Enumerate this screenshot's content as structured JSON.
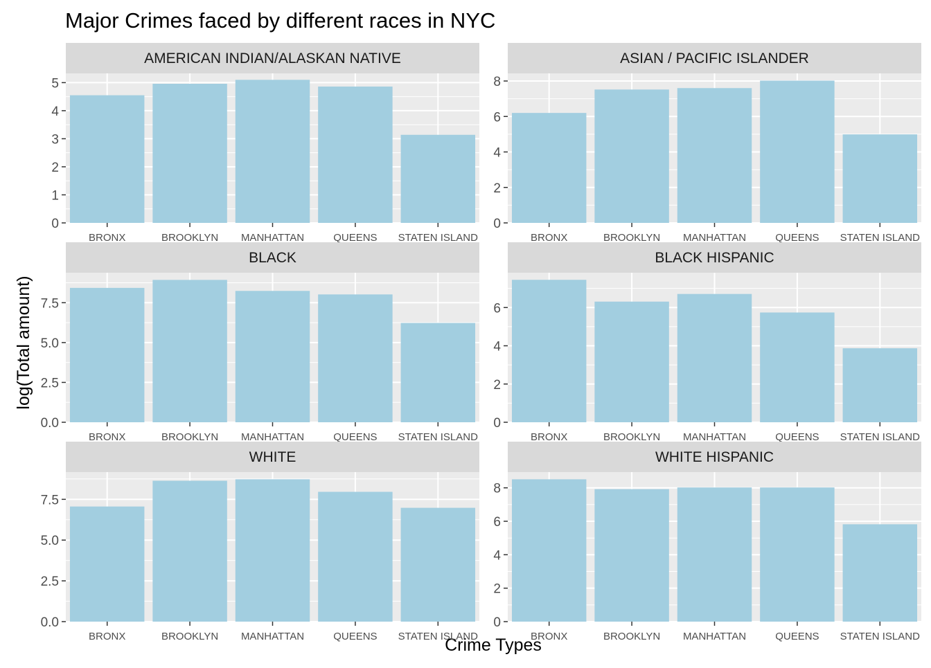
{
  "chart_data": {
    "type": "bar",
    "title": "Major Crimes faced by different races in NYC",
    "xlabel": "Crime Types",
    "ylabel": "log(Total amount)",
    "categories": [
      "BRONX",
      "BROOKLYN",
      "MANHATTAN",
      "QUEENS",
      "STATEN ISLAND"
    ],
    "bar_color": "#A2CEE0",
    "panel_background": "#EBEBEB",
    "strip_background": "#D9D9D9",
    "grid": true,
    "facets": [
      {
        "name": "AMERICAN INDIAN/ALASKAN NATIVE",
        "values": [
          4.55,
          4.96,
          5.1,
          4.86,
          3.14
        ],
        "yticks": [
          0,
          1,
          2,
          3,
          4,
          5
        ],
        "ytick_labels": [
          "0",
          "1",
          "2",
          "3",
          "4",
          "5"
        ],
        "ylim": [
          0,
          5.33
        ]
      },
      {
        "name": "ASIAN / PACIFIC ISLANDER",
        "values": [
          6.2,
          7.52,
          7.6,
          8.02,
          4.99
        ],
        "yticks": [
          0,
          2,
          4,
          6,
          8
        ],
        "ytick_labels": [
          "0",
          "2",
          "4",
          "6",
          "8"
        ],
        "ylim": [
          0,
          8.43
        ]
      },
      {
        "name": "BLACK",
        "values": [
          8.43,
          8.93,
          8.24,
          8.02,
          6.23
        ],
        "yticks": [
          0,
          2.5,
          5,
          7.5
        ],
        "ytick_labels": [
          "0.0",
          "2.5",
          "5.0",
          "7.5"
        ],
        "ylim": [
          0,
          9.38
        ]
      },
      {
        "name": "BLACK HISPANIC",
        "values": [
          7.45,
          6.31,
          6.71,
          5.74,
          3.87
        ],
        "yticks": [
          0,
          2,
          4,
          6
        ],
        "ytick_labels": [
          "0",
          "2",
          "4",
          "6"
        ],
        "ylim": [
          0,
          7.82
        ]
      },
      {
        "name": "WHITE",
        "values": [
          7.06,
          8.64,
          8.73,
          7.96,
          6.98
        ],
        "yticks": [
          0,
          2.5,
          5,
          7.5
        ],
        "ytick_labels": [
          "0.0",
          "2.5",
          "5.0",
          "7.5"
        ],
        "ylim": [
          0,
          9.17
        ]
      },
      {
        "name": "WHITE HISPANIC",
        "values": [
          8.51,
          7.92,
          8.02,
          8.02,
          5.82
        ],
        "yticks": [
          0,
          2,
          4,
          6,
          8
        ],
        "ytick_labels": [
          "0",
          "2",
          "4",
          "6",
          "8"
        ],
        "ylim": [
          0,
          8.94
        ]
      }
    ]
  }
}
